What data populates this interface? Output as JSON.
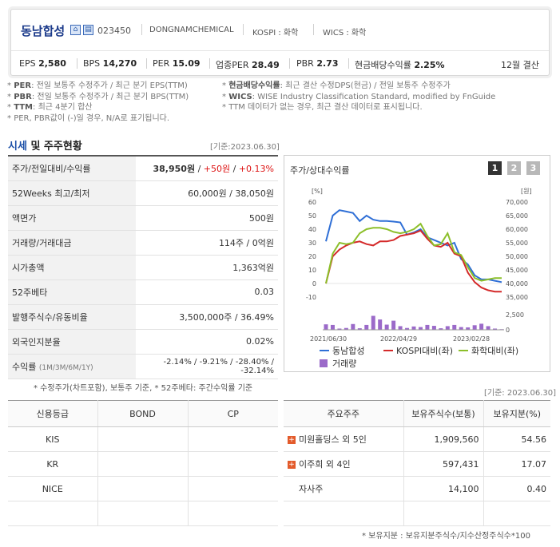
{
  "header": {
    "name": "동남합성",
    "code": "023450",
    "english_name": "DONGNAMCHEMICAL",
    "market": "KOSPI : 화학",
    "wics": "WICS : 화학",
    "stats": [
      {
        "label": "EPS",
        "value": "2,580"
      },
      {
        "label": "BPS",
        "value": "14,270"
      },
      {
        "label": "PER",
        "value": "15.09"
      },
      {
        "label": "업종PER",
        "value": "28.49"
      },
      {
        "label": "PBR",
        "value": "2.73"
      },
      {
        "label": "현금배당수익률",
        "value": "2.25%"
      }
    ],
    "fiscal": "12월 결산"
  },
  "notes_left": [
    {
      "key": "PER",
      "text": ": 전일 보통주 수정주가 / 최근 분기 EPS(TTM)"
    },
    {
      "key": "PBR",
      "text": ": 전일 보통주 수정주가 / 최근 분기 BPS(TTM)"
    },
    {
      "key": "TTM",
      "text": ": 최근 4분기 합산"
    },
    {
      "key": "",
      "text": "PER, PBR값이 (-)일 경우, N/A로 표기됩니다."
    }
  ],
  "notes_right": [
    {
      "key": "현금배당수익률",
      "text": ": 최근 결산 수정DPS(현금) / 전일 보통주 수정주가"
    },
    {
      "key": "WICS",
      "text": ": WISE Industry Classification Standard, modified by FnGuide"
    },
    {
      "key": "",
      "text": "TTM 데이터가 없는 경우, 최근 결산 데이터로 표시됩니다."
    }
  ],
  "price_section": {
    "title_a": "시세",
    "title_b": " 및 주주현황",
    "base_date": "[기준:2023.06.30]",
    "rows": [
      {
        "label": "주가/전일대비/수익률",
        "v1": "38,950원",
        "v2": "+50원",
        "v3": "+0.13%"
      },
      {
        "label": "52Weeks 최고/최저",
        "value": "60,000원 / 38,050원"
      },
      {
        "label": "액면가",
        "value": "500원"
      },
      {
        "label": "거래량/거래대금",
        "value": "114주 / 0억원"
      },
      {
        "label": "시가총액",
        "value": "1,363억원"
      },
      {
        "label": "52주베타",
        "value": "0.03"
      },
      {
        "label": "발행주식수/유동비율",
        "value": "3,500,000주 / 36.49%"
      },
      {
        "label": "외국인지분율",
        "value": "0.02%"
      },
      {
        "label": "수익률",
        "sub": "(1M/3M/6M/1Y)",
        "value": "-2.14% / -9.21% / -28.40% / -32.14%"
      }
    ],
    "footnote": "* 수정주가(차트포함), 보통주 기준, * 52주베타: 주간수익률 기준"
  },
  "chart": {
    "title": "주가/상대수익률",
    "pages": [
      "1",
      "2",
      "3"
    ],
    "left_unit": "[%]",
    "right_unit": "[원]",
    "left_ticks": [
      "60",
      "50",
      "40",
      "30",
      "20",
      "10",
      "0",
      "-10"
    ],
    "right_ticks": [
      "70,000",
      "65,000",
      "60,000",
      "55,000",
      "50,000",
      "45,000",
      "40,000",
      "35,000"
    ],
    "volume_ticks": [
      "2,500",
      "0"
    ],
    "x_labels": [
      "2021/06/30",
      "2022/04/29",
      "2023/02/28"
    ],
    "legend": [
      {
        "name": "동남합성",
        "color": "#2f6fd6"
      },
      {
        "name": "KOSPI대비(좌)",
        "color": "#d42a2a"
      },
      {
        "name": "화학대비(좌)",
        "color": "#8cbf2a"
      },
      {
        "name": "거래량",
        "color": "#9b6ac9"
      }
    ]
  },
  "chart_data": {
    "type": "line",
    "left_ylim": [
      -10,
      60
    ],
    "right_ylim": [
      35000,
      70000
    ],
    "volume_ylim": [
      0,
      5000
    ],
    "n_points": 27,
    "series": [
      {
        "name": "동남합성",
        "axis": "right",
        "values": [
          55500,
          65000,
          67000,
          66500,
          66000,
          63000,
          65000,
          63500,
          63000,
          63000,
          62800,
          62500,
          58000,
          58800,
          60000,
          57000,
          56000,
          55000,
          54000,
          55000,
          49000,
          47000,
          43000,
          41500,
          41500,
          41000,
          40500
        ]
      },
      {
        "name": "KOSPI대비(좌)",
        "axis": "left",
        "values": [
          0,
          20,
          25,
          28,
          30,
          31,
          29,
          28,
          31,
          31,
          32,
          35,
          36,
          37,
          39,
          33,
          28,
          27,
          30,
          22,
          20,
          8,
          1,
          -3,
          -5,
          -6,
          -6
        ]
      },
      {
        "name": "화학대비(좌)",
        "axis": "left",
        "values": [
          0,
          22,
          30,
          29,
          30,
          37,
          40,
          41,
          41,
          40,
          38,
          37,
          38,
          40,
          44,
          35,
          28,
          29,
          37,
          23,
          21,
          12,
          4,
          2,
          3,
          4,
          4
        ]
      },
      {
        "name": "거래량",
        "axis": "volume",
        "values": [
          1800,
          1600,
          400,
          600,
          1900,
          500,
          1600,
          4600,
          3400,
          1700,
          3000,
          1200,
          600,
          1100,
          900,
          1600,
          1300,
          500,
          1200,
          1600,
          900,
          800,
          1500,
          2000,
          1200,
          400,
          200
        ]
      }
    ]
  },
  "credit": {
    "headers": [
      "신용등급",
      "BOND",
      "CP"
    ],
    "rows": [
      [
        "KIS",
        "",
        ""
      ],
      [
        "KR",
        "",
        ""
      ],
      [
        "NICE",
        "",
        ""
      ],
      [
        "",
        "",
        ""
      ]
    ]
  },
  "holders": {
    "base_date": "[기준: 2023.06.30]",
    "headers": [
      "주요주주",
      "보유주식수(보통)",
      "보유지분(%)"
    ],
    "rows": [
      {
        "name": "미원홀딩스 외 5인",
        "expand": true,
        "shares": "1,909,560",
        "pct": "54.56"
      },
      {
        "name": "이주희 외 4인",
        "expand": true,
        "shares": "597,431",
        "pct": "17.07"
      },
      {
        "name": "자사주",
        "expand": false,
        "shares": "14,100",
        "pct": "0.40"
      },
      {
        "name": "",
        "expand": false,
        "shares": "",
        "pct": ""
      }
    ],
    "footnote": "* 보유지분 : 보유지분주식수/지수산정주식수*100"
  }
}
